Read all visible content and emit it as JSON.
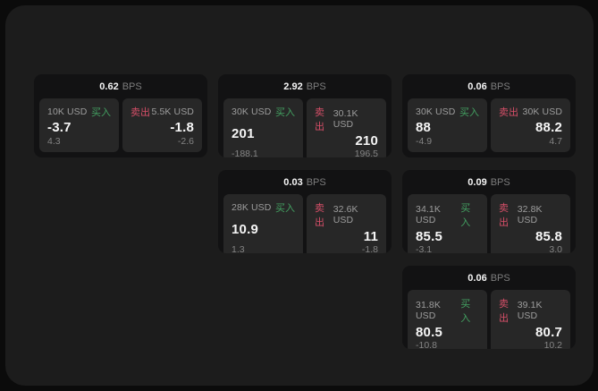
{
  "labels": {
    "bps_unit": "BPS",
    "buy": "买入",
    "sell": "卖出"
  },
  "colors": {
    "canvas_bg": "#1c1c1c",
    "card_bg": "#121213",
    "panel_bg": "#272727",
    "buy_green": "#43a061",
    "sell_red": "#d64f68"
  },
  "cards": [
    {
      "bps": "0.62",
      "buy": {
        "amount": "10K USD",
        "price": "-3.7",
        "delta": "4.3"
      },
      "sell": {
        "amount": "5.5K USD",
        "price": "-1.8",
        "delta": "-2.6"
      }
    },
    {
      "bps": "2.92",
      "buy": {
        "amount": "30K USD",
        "price": "201",
        "delta": "-188.1"
      },
      "sell": {
        "amount": "30.1K USD",
        "price": "210",
        "delta": "196.5"
      }
    },
    {
      "bps": "0.06",
      "buy": {
        "amount": "30K USD",
        "price": "88",
        "delta": "-4.9"
      },
      "sell": {
        "amount": "30K USD",
        "price": "88.2",
        "delta": "4.7"
      }
    },
    {
      "bps": "0.03",
      "buy": {
        "amount": "28K USD",
        "price": "10.9",
        "delta": "1.3"
      },
      "sell": {
        "amount": "32.6K USD",
        "price": "11",
        "delta": "-1.8"
      }
    },
    {
      "bps": "0.09",
      "buy": {
        "amount": "34.1K USD",
        "price": "85.5",
        "delta": "-3.1"
      },
      "sell": {
        "amount": "32.8K USD",
        "price": "85.8",
        "delta": "3.0"
      }
    },
    {
      "bps": "0.06",
      "buy": {
        "amount": "31.8K USD",
        "price": "80.5",
        "delta": "-10.8"
      },
      "sell": {
        "amount": "39.1K USD",
        "price": "80.7",
        "delta": "10.2"
      }
    }
  ]
}
